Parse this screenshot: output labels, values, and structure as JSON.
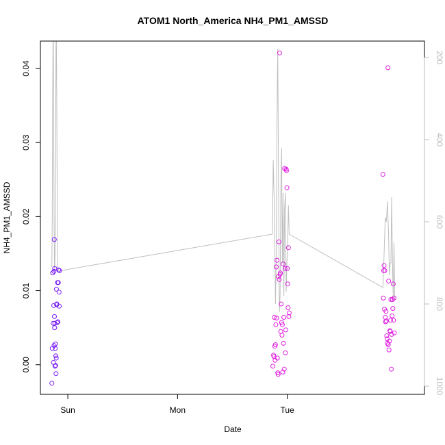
{
  "chart_data": {
    "type": "scatter",
    "title": "ATOM1 North_America NH4_PM1_AMSSD",
    "xlabel": "Date",
    "ylabel": "NH4_PM1_AMSSD",
    "x_tick_labels": [
      "Sun",
      "Mon",
      "Tue"
    ],
    "y_ticks": [
      0.0,
      0.01,
      0.02,
      0.03,
      0.04
    ],
    "y_tick_labels": [
      "0.00",
      "0.01",
      "0.02",
      "0.03",
      "0.04"
    ],
    "ylim": [
      -0.004,
      0.0437
    ],
    "y2_ticks": [
      200,
      400,
      600,
      800,
      1000
    ],
    "y2_tick_labels": [
      "200",
      "400",
      "600",
      "800",
      "1000"
    ],
    "y2lim": [
      1020,
      160
    ],
    "colors": {
      "point_early": "#7a1bf5",
      "point_late": "#e01be0",
      "line": "#bebebe",
      "axis": "#000000",
      "right_axis": "#bebebe"
    },
    "series": [
      {
        "kind": "points",
        "x": [
          "2016-01-30T20:30",
          "2016-01-30T20:35",
          "2016-01-30T20:42",
          "2016-01-30T20:48",
          "2016-01-30T20:52",
          "2016-01-30T20:55",
          "2016-01-30T20:58",
          "2016-01-30T21:00",
          "2016-01-30T21:02",
          "2016-01-30T21:04",
          "2016-01-30T21:06",
          "2016-01-30T21:08",
          "2016-01-30T21:10",
          "2016-01-30T21:12",
          "2016-01-30T21:14",
          "2016-01-30T21:17",
          "2016-01-30T21:20",
          "2016-01-30T21:22",
          "2016-01-30T21:25",
          "2016-01-30T21:28",
          "2016-01-30T21:30",
          "2016-01-30T21:33",
          "2016-01-30T21:36",
          "2016-01-30T21:40",
          "2016-01-30T21:45",
          "2016-01-30T21:50",
          "2016-01-30T21:55",
          "2016-01-30T22:00",
          "2016-01-30T22:05",
          "2016-01-30T22:08",
          "2016-01-30T22:12",
          "2016-02-01T20:50",
          "2016-02-01T21:00",
          "2016-02-01T21:05",
          "2016-02-01T21:10",
          "2016-02-01T21:15",
          "2016-02-01T21:20",
          "2016-02-01T21:25",
          "2016-02-01T21:30",
          "2016-02-01T21:35",
          "2016-02-01T21:40",
          "2016-02-01T21:45",
          "2016-02-01T21:50",
          "2016-02-01T21:55",
          "2016-02-01T22:00",
          "2016-02-01T22:05",
          "2016-02-01T22:10",
          "2016-02-01T22:15",
          "2016-02-01T22:20",
          "2016-02-01T22:25",
          "2016-02-01T22:30",
          "2016-02-01T22:35",
          "2016-02-01T22:40",
          "2016-02-01T22:45",
          "2016-02-01T22:50",
          "2016-02-01T22:55",
          "2016-02-01T23:00",
          "2016-02-01T23:05",
          "2016-02-01T23:10",
          "2016-02-01T23:15",
          "2016-02-01T23:20",
          "2016-02-01T23:25",
          "2016-02-01T23:30",
          "2016-02-01T23:35",
          "2016-02-01T23:40",
          "2016-02-01T23:45",
          "2016-02-01T23:50",
          "2016-02-01T23:55",
          "2016-02-02T00:00",
          "2016-02-02T00:05",
          "2016-02-02T00:10",
          "2016-02-02T00:15",
          "2016-02-02T00:20",
          "2016-02-02T00:25",
          "2016-02-02T20:55",
          "2016-02-02T21:00",
          "2016-02-02T21:05",
          "2016-02-02T21:10",
          "2016-02-02T21:15",
          "2016-02-02T21:20",
          "2016-02-02T21:25",
          "2016-02-02T21:30",
          "2016-02-02T21:35",
          "2016-02-02T21:40",
          "2016-02-02T21:45",
          "2016-02-02T21:50",
          "2016-02-02T21:55",
          "2016-02-02T22:00",
          "2016-02-02T22:05",
          "2016-02-02T22:10",
          "2016-02-02T22:15",
          "2016-02-02T22:20",
          "2016-02-02T22:25",
          "2016-02-02T22:30",
          "2016-02-02T22:35",
          "2016-02-02T22:40",
          "2016-02-02T22:45",
          "2016-02-02T22:50",
          "2016-02-02T22:55",
          "2016-02-02T23:00",
          "2016-02-02T23:05",
          "2016-02-02T23:10",
          "2016-02-02T23:15",
          "2016-02-02T23:20",
          "2016-02-02T23:25"
        ],
        "y": [
          -0.0025,
          0.0022,
          0.0124,
          0.0056,
          0.0003,
          0.008,
          0.0126,
          0.0026,
          0.0169,
          0.0065,
          0.005,
          0.013,
          0.0056,
          -0.0002,
          0.0022,
          0.0028,
          -0.0001,
          0.0012,
          -0.0012,
          0.0009,
          0.0102,
          0.0081,
          0.0082,
          0.0057,
          0.0111,
          0.0058,
          0.0111,
          0.0128,
          0.0098,
          0.0079,
          0.0127,
          -0.0002,
          0.0013,
          0.0011,
          0.0064,
          0.0025,
          0.0006,
          0.0027,
          0.0054,
          0.0132,
          0.0063,
          0.0141,
          0.0009,
          -0.0011,
          -0.0013,
          0.0119,
          0.0166,
          0.0115,
          0.0421,
          0.0122,
          0.0124,
          0.0045,
          0.0082,
          0.0057,
          0.004,
          0.0054,
          -0.001,
          0.0136,
          0.0029,
          0.0064,
          -0.0006,
          0.0265,
          0.013,
          0.0016,
          0.0047,
          0.0264,
          0.0262,
          0.0239,
          0.013,
          0.0109,
          0.0077,
          0.0158,
          0.0065,
          0.007,
          0.0257,
          0.009,
          0.0127,
          0.0134,
          0.0075,
          0.0127,
          0.0064,
          0.0058,
          0.0072,
          0.0059,
          0.0039,
          0.0035,
          0.0029,
          0.0401,
          0.0027,
          0.0113,
          0.002,
          0.0032,
          0.0046,
          0.0045,
          0.006,
          0.0088,
          -0.0006,
          0.0041,
          0.0066,
          0.0088,
          0.0076,
          0.0109,
          0.006,
          0.009,
          0.0043
        ]
      },
      {
        "kind": "line",
        "axis": "right",
        "x": [
          "2016-01-30T20:30",
          "2016-01-30T20:35",
          "2016-01-30T20:40",
          "2016-01-30T20:45",
          "2016-01-30T20:50",
          "2016-01-30T20:55",
          "2016-01-30T21:00",
          "2016-01-30T21:05",
          "2016-01-30T21:10",
          "2016-01-30T21:15",
          "2016-01-30T21:20",
          "2016-01-30T21:25",
          "2016-01-30T21:30",
          "2016-01-30T21:35",
          "2016-01-30T21:40",
          "2016-01-30T21:45",
          "2016-01-30T21:50",
          "2016-02-01T20:45",
          "2016-02-01T20:55",
          "2016-02-01T21:10",
          "2016-02-01T21:25",
          "2016-02-01T21:35",
          "2016-02-01T21:45",
          "2016-02-01T21:55",
          "2016-02-01T22:05",
          "2016-02-01T22:15",
          "2016-02-01T22:25",
          "2016-02-01T22:35",
          "2016-02-01T22:45",
          "2016-02-01T22:55",
          "2016-02-01T23:05",
          "2016-02-01T23:15",
          "2016-02-01T23:25",
          "2016-02-01T23:35",
          "2016-02-01T23:45",
          "2016-02-01T23:55",
          "2016-02-02T00:05",
          "2016-02-02T00:15",
          "2016-02-02T00:25",
          "2016-02-02T20:55",
          "2016-02-02T21:10",
          "2016-02-02T21:25",
          "2016-02-02T21:40",
          "2016-02-02T21:55",
          "2016-02-02T22:10",
          "2016-02-02T22:20",
          "2016-02-02T22:30",
          "2016-02-02T22:40",
          "2016-02-02T22:50",
          "2016-02-02T23:00",
          "2016-02-02T23:10",
          "2016-02-02T23:20",
          "2016-02-02T23:30"
        ],
        "y": [
          710,
          600,
          330,
          160,
          160,
          400,
          590,
          720,
          700,
          640,
          400,
          160,
          160,
          300,
          520,
          700,
          720,
          630,
          450,
          560,
          800,
          680,
          350,
          180,
          480,
          820,
          780,
          520,
          420,
          700,
          530,
          780,
          570,
          530,
          770,
          700,
          650,
          560,
          630,
          760,
          680,
          590,
          600,
          550,
          640,
          730,
          700,
          700,
          540,
          700,
          790,
          650,
          790
        ]
      }
    ]
  }
}
